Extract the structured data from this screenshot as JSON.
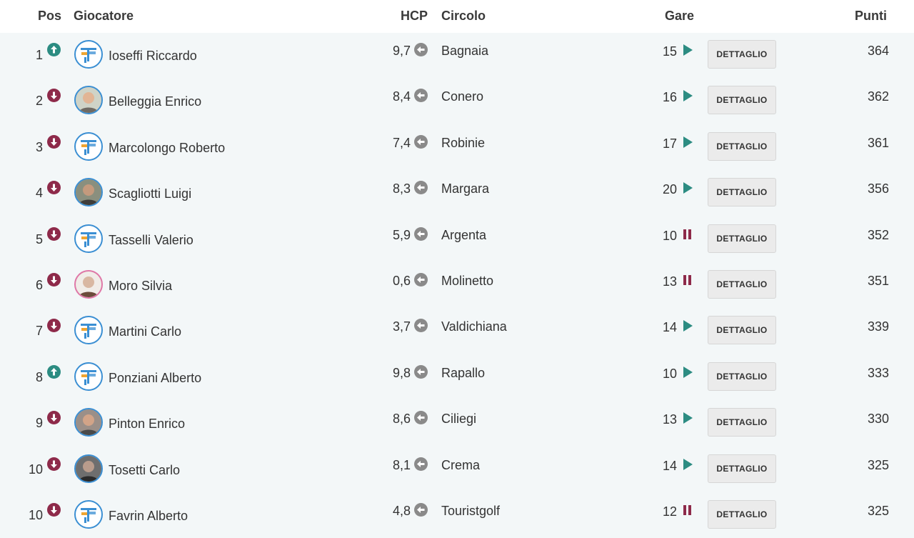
{
  "header": {
    "pos": "Pos",
    "player": "Giocatore",
    "hcp": "HCP",
    "club": "Circolo",
    "races": "Gare",
    "points": "Punti"
  },
  "colors": {
    "trend_up": "#2c8c82",
    "trend_down": "#8e2a4a",
    "row_background": "#f3f7f8",
    "avatar_border": "#3b8fd3"
  },
  "rows": [
    {
      "pos": "1",
      "trend": "up",
      "avatar": "logo",
      "name": "Ioseffi Riccardo",
      "hcp": "9,7",
      "club": "Bagnaia",
      "races": "15",
      "status": "play",
      "button": "DETTAGLIO",
      "points": "364"
    },
    {
      "pos": "2",
      "trend": "down",
      "avatar": "photo",
      "name": "Belleggia Enrico",
      "hcp": "8,4",
      "club": "Conero",
      "races": "16",
      "status": "play",
      "button": "DETTAGLIO",
      "points": "362"
    },
    {
      "pos": "3",
      "trend": "down",
      "avatar": "logo",
      "name": "Marcolongo Roberto",
      "hcp": "7,4",
      "club": "Robinie",
      "races": "17",
      "status": "play",
      "button": "DETTAGLIO",
      "points": "361"
    },
    {
      "pos": "4",
      "trend": "down",
      "avatar": "photo",
      "name": "Scagliotti Luigi",
      "hcp": "8,3",
      "club": "Margara",
      "races": "20",
      "status": "play",
      "button": "DETTAGLIO",
      "points": "356"
    },
    {
      "pos": "5",
      "trend": "down",
      "avatar": "logo",
      "name": "Tasselli Valerio",
      "hcp": "5,9",
      "club": "Argenta",
      "races": "10",
      "status": "pause",
      "button": "DETTAGLIO",
      "points": "352"
    },
    {
      "pos": "6",
      "trend": "down",
      "avatar": "photo",
      "name": "Moro Silvia",
      "hcp": "0,6",
      "club": "Molinetto",
      "races": "13",
      "status": "pause",
      "button": "DETTAGLIO",
      "points": "351"
    },
    {
      "pos": "7",
      "trend": "down",
      "avatar": "logo",
      "name": "Martini Carlo",
      "hcp": "3,7",
      "club": "Valdichiana",
      "races": "14",
      "status": "play",
      "button": "DETTAGLIO",
      "points": "339"
    },
    {
      "pos": "8",
      "trend": "up",
      "avatar": "logo",
      "name": "Ponziani Alberto",
      "hcp": "9,8",
      "club": "Rapallo",
      "races": "10",
      "status": "play",
      "button": "DETTAGLIO",
      "points": "333"
    },
    {
      "pos": "9",
      "trend": "down",
      "avatar": "photo",
      "name": "Pinton Enrico",
      "hcp": "8,6",
      "club": "Ciliegi",
      "races": "13",
      "status": "play",
      "button": "DETTAGLIO",
      "points": "330"
    },
    {
      "pos": "10",
      "trend": "down",
      "avatar": "photo",
      "name": "Tosetti Carlo",
      "hcp": "8,1",
      "club": "Crema",
      "races": "14",
      "status": "play",
      "button": "DETTAGLIO",
      "points": "325"
    },
    {
      "pos": "10",
      "trend": "down",
      "avatar": "logo",
      "name": "Favrin Alberto",
      "hcp": "4,8",
      "club": "Touristgolf",
      "races": "12",
      "status": "pause",
      "button": "DETTAGLIO",
      "points": "325"
    }
  ]
}
